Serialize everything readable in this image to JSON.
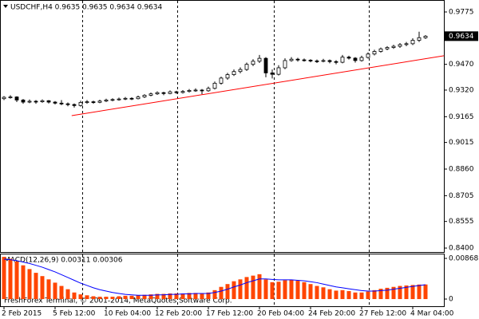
{
  "chart_data": [
    {
      "type": "candlestick",
      "title": "USDCHF,H4  0.9635 0.9635 0.9634 0.9634",
      "categories": [
        "2 Feb 2015",
        null,
        null,
        null,
        null,
        null,
        null,
        null,
        "5 Feb 12:00",
        null,
        null,
        null,
        null,
        null,
        null,
        null,
        "10 Feb 04:00",
        null,
        null,
        null,
        null,
        null,
        null,
        null,
        "12 Feb 20:00",
        null,
        null,
        null,
        null,
        null,
        null,
        null,
        "17 Feb 12:00",
        null,
        null,
        null,
        null,
        null,
        null,
        null,
        "20 Feb 04:00",
        null,
        null,
        null,
        null,
        null,
        null,
        null,
        "24 Feb 20:00",
        null,
        null,
        null,
        null,
        null,
        null,
        null,
        "27 Feb 12:00",
        null,
        null,
        null,
        null,
        null,
        null,
        null,
        "4 Mar 04:00",
        null,
        null
      ],
      "open": [
        0.927,
        0.9278,
        0.928,
        0.9262,
        0.925,
        0.9255,
        0.9252,
        0.9258,
        0.925,
        0.9244,
        0.924,
        0.9236,
        0.923,
        0.9248,
        0.9252,
        0.9249,
        0.9256,
        0.9262,
        0.9265,
        0.9268,
        0.9272,
        0.927,
        0.928,
        0.929,
        0.9298,
        0.9305,
        0.93,
        0.931,
        0.9306,
        0.9312,
        0.9318,
        0.932,
        0.9316,
        0.933,
        0.936,
        0.939,
        0.941,
        0.9428,
        0.944,
        0.947,
        0.9488,
        0.9505,
        0.942,
        0.9412,
        0.945,
        0.9492,
        0.95,
        0.9496,
        0.9494,
        0.949,
        0.9488,
        0.9492,
        0.9486,
        0.9482,
        0.9512,
        0.9506,
        0.9492,
        0.951,
        0.953,
        0.9545,
        0.956,
        0.9568,
        0.9575,
        0.9585,
        0.959,
        0.961,
        0.9625
      ],
      "high": [
        0.9285,
        0.929,
        0.9284,
        0.9268,
        0.9265,
        0.9262,
        0.9266,
        0.9262,
        0.9256,
        0.9262,
        0.9248,
        0.9242,
        0.9258,
        0.9262,
        0.9258,
        0.9264,
        0.927,
        0.9272,
        0.9276,
        0.928,
        0.9278,
        0.9288,
        0.9296,
        0.9306,
        0.9312,
        0.931,
        0.9318,
        0.9316,
        0.932,
        0.9326,
        0.933,
        0.9326,
        0.934,
        0.937,
        0.9398,
        0.942,
        0.944,
        0.9452,
        0.948,
        0.95,
        0.9525,
        0.9512,
        0.944,
        0.9465,
        0.9505,
        0.9512,
        0.9508,
        0.9504,
        0.95,
        0.9498,
        0.9502,
        0.9498,
        0.9494,
        0.9525,
        0.952,
        0.9512,
        0.952,
        0.954,
        0.9555,
        0.9568,
        0.9576,
        0.9584,
        0.9594,
        0.96,
        0.9622,
        0.966,
        0.964
      ],
      "low": [
        0.9262,
        0.927,
        0.925,
        0.924,
        0.9244,
        0.924,
        0.9246,
        0.9242,
        0.9236,
        0.9232,
        0.9226,
        0.9218,
        0.9224,
        0.924,
        0.924,
        0.9244,
        0.925,
        0.9255,
        0.9258,
        0.9262,
        0.9262,
        0.9266,
        0.9274,
        0.9284,
        0.9292,
        0.929,
        0.9296,
        0.9298,
        0.93,
        0.9306,
        0.931,
        0.9296,
        0.931,
        0.9324,
        0.9352,
        0.938,
        0.9402,
        0.9418,
        0.9432,
        0.946,
        0.9478,
        0.9395,
        0.9388,
        0.9405,
        0.9442,
        0.9485,
        0.9486,
        0.9486,
        0.9482,
        0.9478,
        0.9482,
        0.9476,
        0.947,
        0.9476,
        0.9498,
        0.948,
        0.9486,
        0.9504,
        0.9522,
        0.9538,
        0.9552,
        0.956,
        0.9566,
        0.9576,
        0.9582,
        0.96,
        0.9618
      ],
      "close": [
        0.9278,
        0.928,
        0.9262,
        0.925,
        0.9255,
        0.9252,
        0.9258,
        0.925,
        0.9244,
        0.924,
        0.9236,
        0.923,
        0.9248,
        0.9252,
        0.9249,
        0.9256,
        0.9262,
        0.9265,
        0.9268,
        0.9272,
        0.927,
        0.928,
        0.929,
        0.9298,
        0.9305,
        0.93,
        0.931,
        0.9306,
        0.9312,
        0.9318,
        0.932,
        0.9316,
        0.933,
        0.936,
        0.939,
        0.941,
        0.9428,
        0.944,
        0.947,
        0.9488,
        0.9505,
        0.942,
        0.9412,
        0.945,
        0.9492,
        0.95,
        0.9496,
        0.9494,
        0.949,
        0.9488,
        0.9492,
        0.9486,
        0.9482,
        0.9512,
        0.9506,
        0.9492,
        0.951,
        0.953,
        0.9545,
        0.956,
        0.9568,
        0.9575,
        0.9585,
        0.959,
        0.961,
        0.9625,
        0.9634
      ],
      "ylim": [
        0.8377,
        0.984
      ],
      "yticks": [
        0.9775,
        {
          "value": 0.947,
          "label": "0.9470"
        },
        {
          "value": 0.932,
          "label": "0.9320"
        },
        0.9165,
        0.9015,
        {
          "value": 0.886,
          "label": "0.8860"
        },
        0.8705,
        0.8555,
        {
          "value": 0.84,
          "label": "0.8400"
        }
      ],
      "current_price": 0.9634,
      "trendline": {
        "x": [
          10.6,
          68.9
        ],
        "y": [
          0.9171,
          0.952
        ],
        "color": "#ff0000"
      }
    },
    {
      "type": "macd",
      "title": "MACD(12,26,9) 0.00311 0.00306",
      "watermark": "FreshForex Terminal, © 2001-2014, MetaQuotes Software Corp.",
      "values": [
        0.009,
        0.0086,
        0.008,
        0.0072,
        0.0064,
        0.0056,
        0.0049,
        0.0042,
        0.0035,
        0.0028,
        0.0021,
        0.0014,
        0.001,
        0.0008,
        0.0006,
        0.0005,
        0.0005,
        0.0005,
        0.0006,
        0.0007,
        0.0007,
        0.0008,
        0.0009,
        0.001,
        0.0011,
        0.0011,
        0.0012,
        0.0012,
        0.0012,
        0.0013,
        0.0013,
        0.0012,
        0.0014,
        0.0019,
        0.0026,
        0.0032,
        0.0038,
        0.0042,
        0.0047,
        0.005,
        0.0053,
        0.0042,
        0.0036,
        0.0037,
        0.004,
        0.0041,
        0.0039,
        0.0036,
        0.0032,
        0.0028,
        0.0025,
        0.0021,
        0.0018,
        0.0019,
        0.0017,
        0.0014,
        0.0014,
        0.0016,
        0.0019,
        0.0022,
        0.0024,
        0.0026,
        0.0028,
        0.0029,
        0.003,
        0.0031,
        0.00311
      ],
      "color": "#ff4500",
      "signal": {
        "values": [
          0.0085,
          0.0084,
          0.0082,
          0.0079,
          0.0076,
          0.0072,
          0.0068,
          0.0063,
          0.0058,
          0.0052,
          0.0046,
          0.004,
          0.0034,
          0.0029,
          0.0024,
          0.002,
          0.0017,
          0.0014,
          0.0012,
          0.001,
          0.0009,
          0.0008,
          0.0008,
          0.0008,
          0.0009,
          0.0009,
          0.001,
          0.001,
          0.0011,
          0.0011,
          0.0012,
          0.0012,
          0.0012,
          0.0014,
          0.0017,
          0.0021,
          0.0026,
          0.003,
          0.0035,
          0.0039,
          0.0043,
          0.0043,
          0.0042,
          0.0041,
          0.0041,
          0.0041,
          0.004,
          0.0039,
          0.0037,
          0.0035,
          0.0032,
          0.0029,
          0.0026,
          0.0024,
          0.0022,
          0.002,
          0.0018,
          0.0017,
          0.0017,
          0.0018,
          0.0019,
          0.0021,
          0.0023,
          0.0025,
          0.0027,
          0.0029,
          0.00306
        ],
        "color": "#0000ff"
      },
      "ylim": [
        -0.0017,
        0.0097
      ],
      "yticks": [
        0.00868,
        0
      ]
    }
  ]
}
